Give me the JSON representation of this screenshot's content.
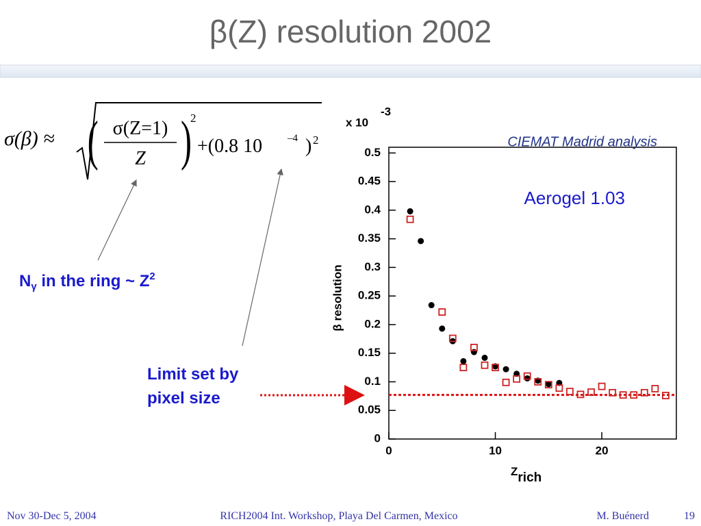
{
  "title": "β(Z) resolution 2002",
  "formula": {
    "lhs": "σ(β) ≈",
    "open_paren": "(",
    "numerator": "σ(Z=1)",
    "denominator": "Z",
    "close_paren": ")",
    "exp1": "2",
    "term": "+(0.8  10",
    "term_exp": "–4",
    "term_close": ")",
    "exp2": "2"
  },
  "note_ngamma": [
    "N",
    "γ",
    " in the ring ~ Z",
    "2"
  ],
  "note_limit": [
    "Limit set by",
    "pixel size"
  ],
  "footer": {
    "left": "Nov 30-Dec 5, 2004",
    "center": "RICH2004 Int. Workshop, Playa Del Carmen, Mexico",
    "author": "M. Buénerd",
    "page": "19"
  },
  "chart_data": {
    "type": "scatter",
    "multiplier": "x 10",
    "multiplier_exp": "-3",
    "ylabel": "β resolution",
    "xlabel": "Z",
    "xlabel_sub": "rich",
    "annotations": [
      "CIEMAT  Madrid analysis",
      "Aerogel 1.03"
    ],
    "xlim": [
      0,
      27
    ],
    "ylim": [
      0,
      0.51
    ],
    "xticks": [
      0,
      10,
      20
    ],
    "yticks": [
      0,
      0.05,
      0.1,
      0.15,
      0.2,
      0.25,
      0.3,
      0.35,
      0.4,
      0.45,
      0.5
    ],
    "limit_line": 0.077,
    "limit_color": "#dd1111",
    "series": [
      {
        "color": "#000000",
        "marker": "circle",
        "x": [
          2,
          3,
          4,
          5,
          6,
          7,
          8,
          9,
          10,
          11,
          12,
          13,
          14,
          15,
          16
        ],
        "values": [
          0.398,
          0.346,
          0.234,
          0.193,
          0.171,
          0.136,
          0.152,
          0.142,
          0.127,
          0.122,
          0.114,
          0.106,
          0.102,
          0.096,
          0.098
        ]
      },
      {
        "color": "#cc2222",
        "marker": "square",
        "x": [
          2,
          5,
          6,
          7,
          8,
          9,
          10,
          11,
          12,
          13,
          14,
          15,
          16,
          17,
          18,
          19,
          20,
          21,
          22,
          23,
          24,
          25,
          26
        ],
        "values": [
          0.384,
          0.222,
          0.176,
          0.125,
          0.16,
          0.129,
          0.125,
          0.099,
          0.105,
          0.11,
          0.1,
          0.095,
          0.089,
          0.083,
          0.078,
          0.082,
          0.092,
          0.081,
          0.077,
          0.077,
          0.081,
          0.088,
          0.076
        ]
      }
    ]
  }
}
